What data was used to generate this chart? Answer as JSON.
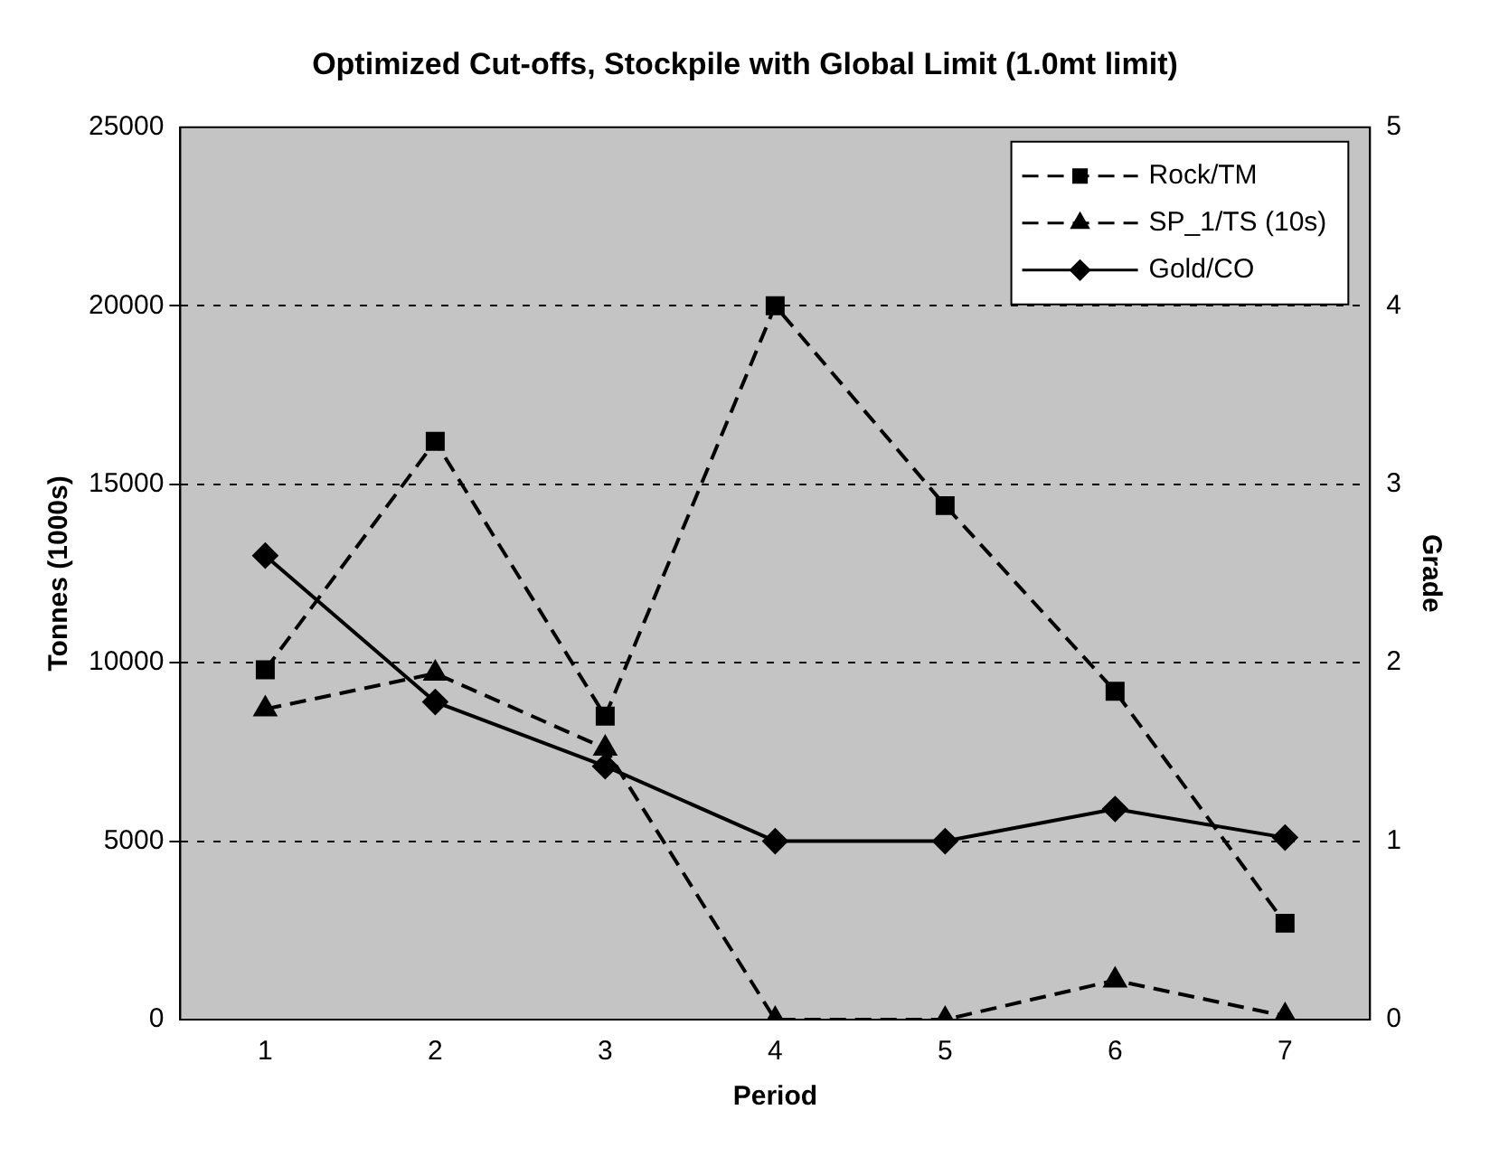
{
  "chart_data": {
    "type": "line",
    "title": "Optimized Cut-offs, Stockpile with Global Limit (1.0mt limit)",
    "xlabel": "Period",
    "ylabel": "Tonnes (1000s)",
    "y2label": "Grade",
    "categories": [
      "1",
      "2",
      "3",
      "4",
      "5",
      "6",
      "7"
    ],
    "series": [
      {
        "name": "Rock/TM",
        "color": "#000000",
        "marker": "square",
        "line_style": "dashed",
        "values": [
          9800,
          16200,
          8500,
          20000,
          14400,
          9200,
          2700
        ]
      },
      {
        "name": "SP_1/TS (10s)",
        "color": "#000000",
        "marker": "triangle",
        "line_style": "dashed",
        "values": [
          8700,
          9700,
          7600,
          0,
          0,
          1100,
          100
        ]
      },
      {
        "name": "Gold/CO",
        "color": "#000000",
        "marker": "diamond",
        "line_style": "solid",
        "axis": "y2",
        "values": [
          2.6,
          1.78,
          1.42,
          1.0,
          1.0,
          1.18,
          1.02
        ]
      }
    ],
    "ylim": [
      0,
      25000
    ],
    "yticks": [
      0,
      5000,
      10000,
      15000,
      20000,
      25000
    ],
    "y2lim": [
      0,
      5
    ],
    "y2ticks": [
      0,
      1,
      2,
      3,
      4,
      5
    ],
    "grid": "y",
    "legend": "top right"
  }
}
